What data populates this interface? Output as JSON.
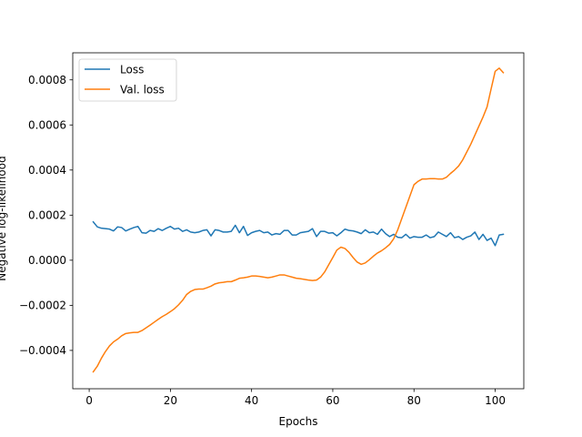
{
  "chart_data": {
    "type": "line",
    "title": "",
    "xlabel": "Epochs",
    "ylabel": "Negative log-likelihood",
    "xlim": [
      -4.05,
      107.05
    ],
    "ylim": [
      -0.00057,
      0.00092
    ],
    "xticks": [
      0,
      20,
      40,
      60,
      80,
      100
    ],
    "xtick_labels": [
      "0",
      "20",
      "40",
      "60",
      "80",
      "100"
    ],
    "yticks": [
      -0.0004,
      -0.0002,
      0.0,
      0.0002,
      0.0004,
      0.0006,
      0.0008
    ],
    "ytick_labels": [
      "−0.0004",
      "−0.0002",
      "0.0000",
      "0.0002",
      "0.0004",
      "0.0006",
      "0.0008"
    ],
    "grid": false,
    "legend_position": "upper-left",
    "colors": {
      "Loss": "#1f77b4",
      "Val. loss": "#ff7f0e"
    },
    "series": [
      {
        "name": "Loss",
        "x": [
          1,
          2,
          3,
          4,
          5,
          6,
          7,
          8,
          9,
          10,
          11,
          12,
          13,
          14,
          15,
          16,
          17,
          18,
          19,
          20,
          21,
          22,
          23,
          24,
          25,
          26,
          27,
          28,
          29,
          30,
          31,
          32,
          33,
          34,
          35,
          36,
          37,
          38,
          39,
          40,
          41,
          42,
          43,
          44,
          45,
          46,
          47,
          48,
          49,
          50,
          51,
          52,
          53,
          54,
          55,
          56,
          57,
          58,
          59,
          60,
          61,
          62,
          63,
          64,
          65,
          66,
          67,
          68,
          69,
          70,
          71,
          72,
          73,
          74,
          75,
          76,
          77,
          78,
          79,
          80,
          81,
          82,
          83,
          84,
          85,
          86,
          87,
          88,
          89,
          90,
          91,
          92,
          93,
          94,
          95,
          96,
          97,
          98,
          99,
          100,
          101,
          102
        ],
        "values": [
          0.00017,
          0.000148,
          0.000142,
          0.00014,
          0.000138,
          0.00013,
          0.000148,
          0.000145,
          0.00013,
          0.000138,
          0.000145,
          0.00015,
          0.000122,
          0.00012,
          0.000132,
          0.000128,
          0.00014,
          0.000132,
          0.000142,
          0.00015,
          0.000138,
          0.000142,
          0.000128,
          0.000135,
          0.000125,
          0.000122,
          0.000125,
          0.000132,
          0.000135,
          0.000108,
          0.000135,
          0.000132,
          0.000125,
          0.000125,
          0.000128,
          0.000155,
          0.000122,
          0.00015,
          0.00011,
          0.000122,
          0.000128,
          0.000132,
          0.000122,
          0.000125,
          0.000112,
          0.000118,
          0.000115,
          0.000132,
          0.000132,
          0.000112,
          0.000112,
          0.000122,
          0.000125,
          0.000128,
          0.00014,
          0.000105,
          0.000128,
          0.000128,
          0.00012,
          0.000122,
          0.000108,
          0.000122,
          0.000138,
          0.000132,
          0.00013,
          0.000125,
          0.000118,
          0.000135,
          0.000122,
          0.000125,
          0.000115,
          0.000138,
          0.000118,
          0.000105,
          0.000115,
          0.000102,
          0.0001,
          0.000115,
          9.8e-05,
          0.000105,
          0.000102,
          0.000102,
          0.000112,
          0.0001,
          0.000105,
          0.000125,
          0.000115,
          0.000105,
          0.000122,
          0.0001,
          0.000105,
          9.2e-05,
          0.000102,
          0.000108,
          0.000125,
          9.2e-05,
          0.000115,
          8.8e-05,
          9.8e-05,
          6.5e-05,
          0.000112,
          0.000115
        ]
      },
      {
        "name": "Val. loss",
        "x": [
          1,
          2,
          3,
          4,
          5,
          6,
          7,
          8,
          9,
          10,
          11,
          12,
          13,
          14,
          15,
          16,
          17,
          18,
          19,
          20,
          21,
          22,
          23,
          24,
          25,
          26,
          27,
          28,
          29,
          30,
          31,
          32,
          33,
          34,
          35,
          36,
          37,
          38,
          39,
          40,
          41,
          42,
          43,
          44,
          45,
          46,
          47,
          48,
          49,
          50,
          51,
          52,
          53,
          54,
          55,
          56,
          57,
          58,
          59,
          60,
          61,
          62,
          63,
          64,
          65,
          66,
          67,
          68,
          69,
          70,
          71,
          72,
          73,
          74,
          75,
          76,
          77,
          78,
          79,
          80,
          81,
          82,
          83,
          84,
          85,
          86,
          87,
          88,
          89,
          90,
          91,
          92,
          93,
          94,
          95,
          96,
          97,
          98,
          99,
          100,
          101,
          102
        ],
        "values": [
          -0.000495,
          -0.00047,
          -0.000435,
          -0.000405,
          -0.00038,
          -0.000362,
          -0.00035,
          -0.000335,
          -0.000325,
          -0.000322,
          -0.00032,
          -0.00032,
          -0.000312,
          -0.0003,
          -0.000288,
          -0.000275,
          -0.000262,
          -0.00025,
          -0.00024,
          -0.000228,
          -0.000215,
          -0.000198,
          -0.000178,
          -0.000152,
          -0.000138,
          -0.00013,
          -0.000128,
          -0.000128,
          -0.000122,
          -0.000115,
          -0.000105,
          -0.0001,
          -9.8e-05,
          -9.5e-05,
          -9.5e-05,
          -8.8e-05,
          -8e-05,
          -7.8e-05,
          -7.5e-05,
          -7e-05,
          -7e-05,
          -7.2e-05,
          -7.5e-05,
          -7.8e-05,
          -7.5e-05,
          -7e-05,
          -6.5e-05,
          -6.5e-05,
          -7e-05,
          -7.5e-05,
          -8e-05,
          -8.2e-05,
          -8.5e-05,
          -8.8e-05,
          -9e-05,
          -8.8e-05,
          -7.5e-05,
          -5.2e-05,
          -2e-05,
          1.2e-05,
          4.5e-05,
          5.8e-05,
          5.2e-05,
          3.5e-05,
          1.2e-05,
          -8e-06,
          -1.8e-05,
          -1.2e-05,
          2e-06,
          1.8e-05,
          3.2e-05,
          4.2e-05,
          5.5e-05,
          7e-05,
          9.5e-05,
          0.000135,
          0.000185,
          0.000235,
          0.000285,
          0.000335,
          0.00035,
          0.00036,
          0.00036,
          0.000362,
          0.000362,
          0.00036,
          0.00036,
          0.000368,
          0.000385,
          0.0004,
          0.000418,
          0.000445,
          0.00048,
          0.000515,
          0.000555,
          0.000595,
          0.000635,
          0.00068,
          0.00076,
          0.000838,
          0.000852,
          0.000832
        ]
      }
    ]
  }
}
